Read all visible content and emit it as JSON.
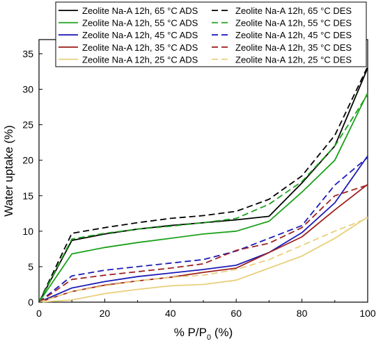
{
  "chart_data": {
    "type": "line",
    "title": "",
    "xlabel": "% P/P",
    "xlabel_sub": "0",
    "xlabel_suffix": " (%)",
    "ylabel": "Water uptake (%)",
    "xlim": [
      0,
      100
    ],
    "ylim": [
      0,
      37
    ],
    "xticks": [
      0,
      20,
      40,
      60,
      80,
      100
    ],
    "yticks": [
      0,
      5,
      10,
      15,
      20,
      25,
      30,
      35
    ],
    "grid": false,
    "legend_position": "top",
    "x": [
      0,
      10,
      20,
      30,
      40,
      50,
      60,
      70,
      80,
      90,
      100
    ],
    "series": [
      {
        "name": "Zeolite Na-A 12h, 65 °C ADS",
        "color": "#000000",
        "dash": "solid",
        "values": [
          0,
          8.7,
          9.6,
          10.3,
          10.8,
          11.2,
          11.6,
          12.1,
          16.8,
          22.0,
          33.0
        ]
      },
      {
        "name": "Zeolite Na-A 12h, 65 °C DES",
        "color": "#000000",
        "dash": "dashed",
        "values": [
          0,
          9.7,
          10.5,
          11.2,
          11.8,
          12.2,
          12.8,
          14.5,
          17.8,
          23.5,
          33.2
        ]
      },
      {
        "name": "Zeolite Na-A 12h, 55 °C ADS",
        "color": "#1aa11a",
        "dash": "solid",
        "values": [
          0,
          6.8,
          7.7,
          8.4,
          9.0,
          9.6,
          10.0,
          11.4,
          15.5,
          20.0,
          29.5
        ]
      },
      {
        "name": "Zeolite Na-A 12h, 55 °C DES",
        "color": "#1aa11a",
        "dash": "dashed",
        "values": [
          0,
          8.9,
          9.7,
          10.3,
          10.7,
          11.2,
          11.8,
          13.8,
          17.0,
          22.0,
          29.3
        ]
      },
      {
        "name": "Zeolite Na-A 12h, 45 °C ADS",
        "color": "#1a1ab8",
        "dash": "solid",
        "values": [
          0,
          2.0,
          2.9,
          3.6,
          4.1,
          4.6,
          5.2,
          7.0,
          9.8,
          14.0,
          20.6
        ]
      },
      {
        "name": "Zeolite Na-A 12h, 45 °C DES",
        "color": "#1a1ab8",
        "dash": "dashed",
        "values": [
          0,
          3.7,
          4.5,
          5.0,
          5.5,
          6.0,
          7.2,
          9.0,
          10.8,
          16.5,
          20.4
        ]
      },
      {
        "name": "Zeolite Na-A 12h, 35 °C ADS",
        "color": "#a02020",
        "dash": "solid",
        "values": [
          0,
          1.5,
          2.4,
          3.0,
          3.5,
          4.2,
          4.8,
          7.0,
          9.2,
          13.0,
          16.6
        ]
      },
      {
        "name": "Zeolite Na-A 12h, 35 °C DES",
        "color": "#a02020",
        "dash": "dashed",
        "values": [
          0,
          3.2,
          3.8,
          4.3,
          4.8,
          5.4,
          7.3,
          8.3,
          10.5,
          15.0,
          16.5
        ]
      },
      {
        "name": "Zeolite Na-A 12h, 25 °C ADS",
        "color": "#e8cf7a",
        "dash": "solid",
        "values": [
          0,
          0.3,
          1.2,
          1.8,
          2.3,
          2.5,
          3.1,
          4.8,
          6.5,
          9.0,
          12.0
        ]
      },
      {
        "name": "Zeolite Na-A 12h, 25 °C DES",
        "color": "#e8cf7a",
        "dash": "dashed",
        "values": [
          0,
          1.5,
          2.3,
          3.0,
          3.5,
          3.8,
          4.6,
          6.0,
          8.0,
          10.0,
          11.8
        ]
      }
    ]
  }
}
